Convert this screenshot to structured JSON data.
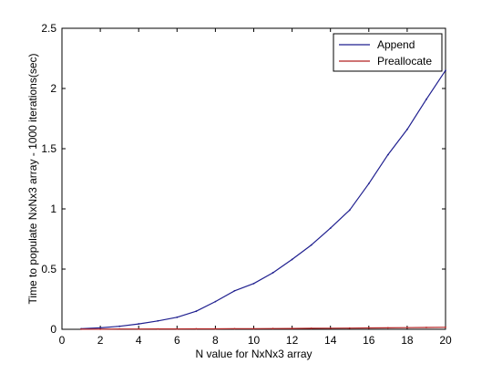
{
  "chart_data": {
    "type": "line",
    "title": "",
    "xlabel": "N value for NxNx3 array",
    "ylabel": "Time to populate NxNx3 array - 1000 iterations(sec)",
    "xlim": [
      0,
      20
    ],
    "ylim": [
      0,
      2.5
    ],
    "xticks": [
      "0",
      "2",
      "4",
      "6",
      "8",
      "10",
      "12",
      "14",
      "16",
      "18",
      "20"
    ],
    "yticks": [
      "0",
      "0.5",
      "1",
      "1.5",
      "2",
      "2.5"
    ],
    "grid": false,
    "legend_position": "top-right",
    "series": [
      {
        "name": "Append",
        "color": "#1f1f8f",
        "x": [
          1,
          2,
          3,
          4,
          5,
          6,
          7,
          8,
          9,
          10,
          11,
          12,
          13,
          14,
          15,
          16,
          17,
          18,
          19,
          20
        ],
        "y": [
          0.005,
          0.012,
          0.025,
          0.045,
          0.07,
          0.1,
          0.15,
          0.23,
          0.32,
          0.38,
          0.47,
          0.58,
          0.7,
          0.84,
          0.99,
          1.21,
          1.45,
          1.66,
          1.91,
          2.15
        ]
      },
      {
        "name": "Preallocate",
        "color": "#b22222",
        "x": [
          1,
          2,
          3,
          4,
          5,
          6,
          7,
          8,
          9,
          10,
          11,
          12,
          13,
          14,
          15,
          16,
          17,
          18,
          19,
          20
        ],
        "y": [
          0.001,
          0.001,
          0.002,
          0.002,
          0.003,
          0.003,
          0.004,
          0.004,
          0.005,
          0.005,
          0.006,
          0.007,
          0.008,
          0.009,
          0.01,
          0.011,
          0.012,
          0.014,
          0.015,
          0.017
        ]
      }
    ]
  }
}
